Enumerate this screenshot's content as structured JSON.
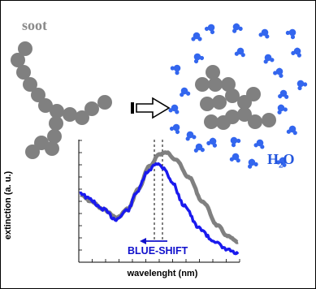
{
  "labels": {
    "soot": "soot",
    "water_main": "H",
    "water_sub": "2",
    "water_end": "O",
    "blue_shift": "BLUE-SHIFT",
    "y_axis": "extinction (a. u.)",
    "x_axis": "wavelenght (nm)"
  },
  "colors": {
    "soot_particle": "#808080",
    "water_molecule": "#3366ee",
    "blue_curve": "#1a1aee",
    "gray_curve": "#808080",
    "label_blue": "#2255dd"
  },
  "icons": [
    "soot-particle-icon",
    "hollow-arrow-icon",
    "water-molecule-icon"
  ],
  "chart_data": {
    "type": "line",
    "series": [
      {
        "color": "blue"
      },
      {
        "color": "gray"
      }
    ]
  }
}
